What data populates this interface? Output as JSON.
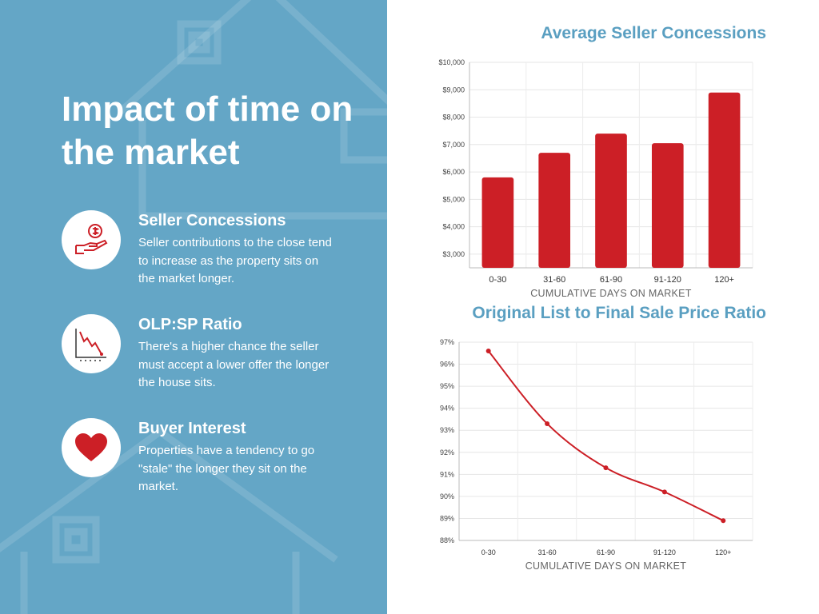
{
  "headline": "Impact of time on the market",
  "features": [
    {
      "title": "Seller Concessions",
      "description": "Seller contributions to the close tend to increase as the property sits on the market longer.",
      "icon": "hand-dollar-icon"
    },
    {
      "title": "OLP:SP Ratio",
      "description": "There's a higher chance the seller must accept a lower offer the longer the house sits.",
      "icon": "declining-chart-icon"
    },
    {
      "title": "Buyer Interest",
      "description": "Properties have a tendency to go \"stale\" the longer they sit on the market.",
      "icon": "heart-icon"
    }
  ],
  "colors": {
    "panel": "#64a6c6",
    "accent": "#cc1f26",
    "chart_title": "#5a9fc1"
  },
  "chart_data": [
    {
      "type": "bar",
      "title": "Average Seller Concessions",
      "xlabel": "CUMULATIVE DAYS ON MARKET",
      "ylabel": "",
      "categories": [
        "0-30",
        "31-60",
        "61-90",
        "91-120",
        "120+"
      ],
      "values": [
        5800,
        6700,
        7400,
        7050,
        8900
      ],
      "ylim": [
        2500,
        10000
      ],
      "yticks": [
        3000,
        4000,
        5000,
        6000,
        7000,
        8000,
        9000,
        10000
      ],
      "ytick_labels": [
        "$3,000",
        "$4,000",
        "$5,000",
        "$6,000",
        "$7,000",
        "$8,000",
        "$9,000",
        "$10,000"
      ],
      "grid": true,
      "color": "#cc1f26"
    },
    {
      "type": "line",
      "title": "Original List to Final Sale Price Ratio",
      "xlabel": "CUMULATIVE DAYS ON MARKET",
      "ylabel": "",
      "categories": [
        "0-30",
        "31-60",
        "61-90",
        "91-120",
        "120+"
      ],
      "values": [
        96.6,
        93.3,
        91.3,
        90.2,
        88.9
      ],
      "ylim": [
        88,
        97
      ],
      "yticks": [
        88,
        89,
        90,
        91,
        92,
        93,
        94,
        95,
        96,
        97
      ],
      "ytick_labels": [
        "88%",
        "89%",
        "90%",
        "91%",
        "92%",
        "93%",
        "94%",
        "95%",
        "96%",
        "97%"
      ],
      "grid": true,
      "color": "#cc1f26"
    }
  ]
}
